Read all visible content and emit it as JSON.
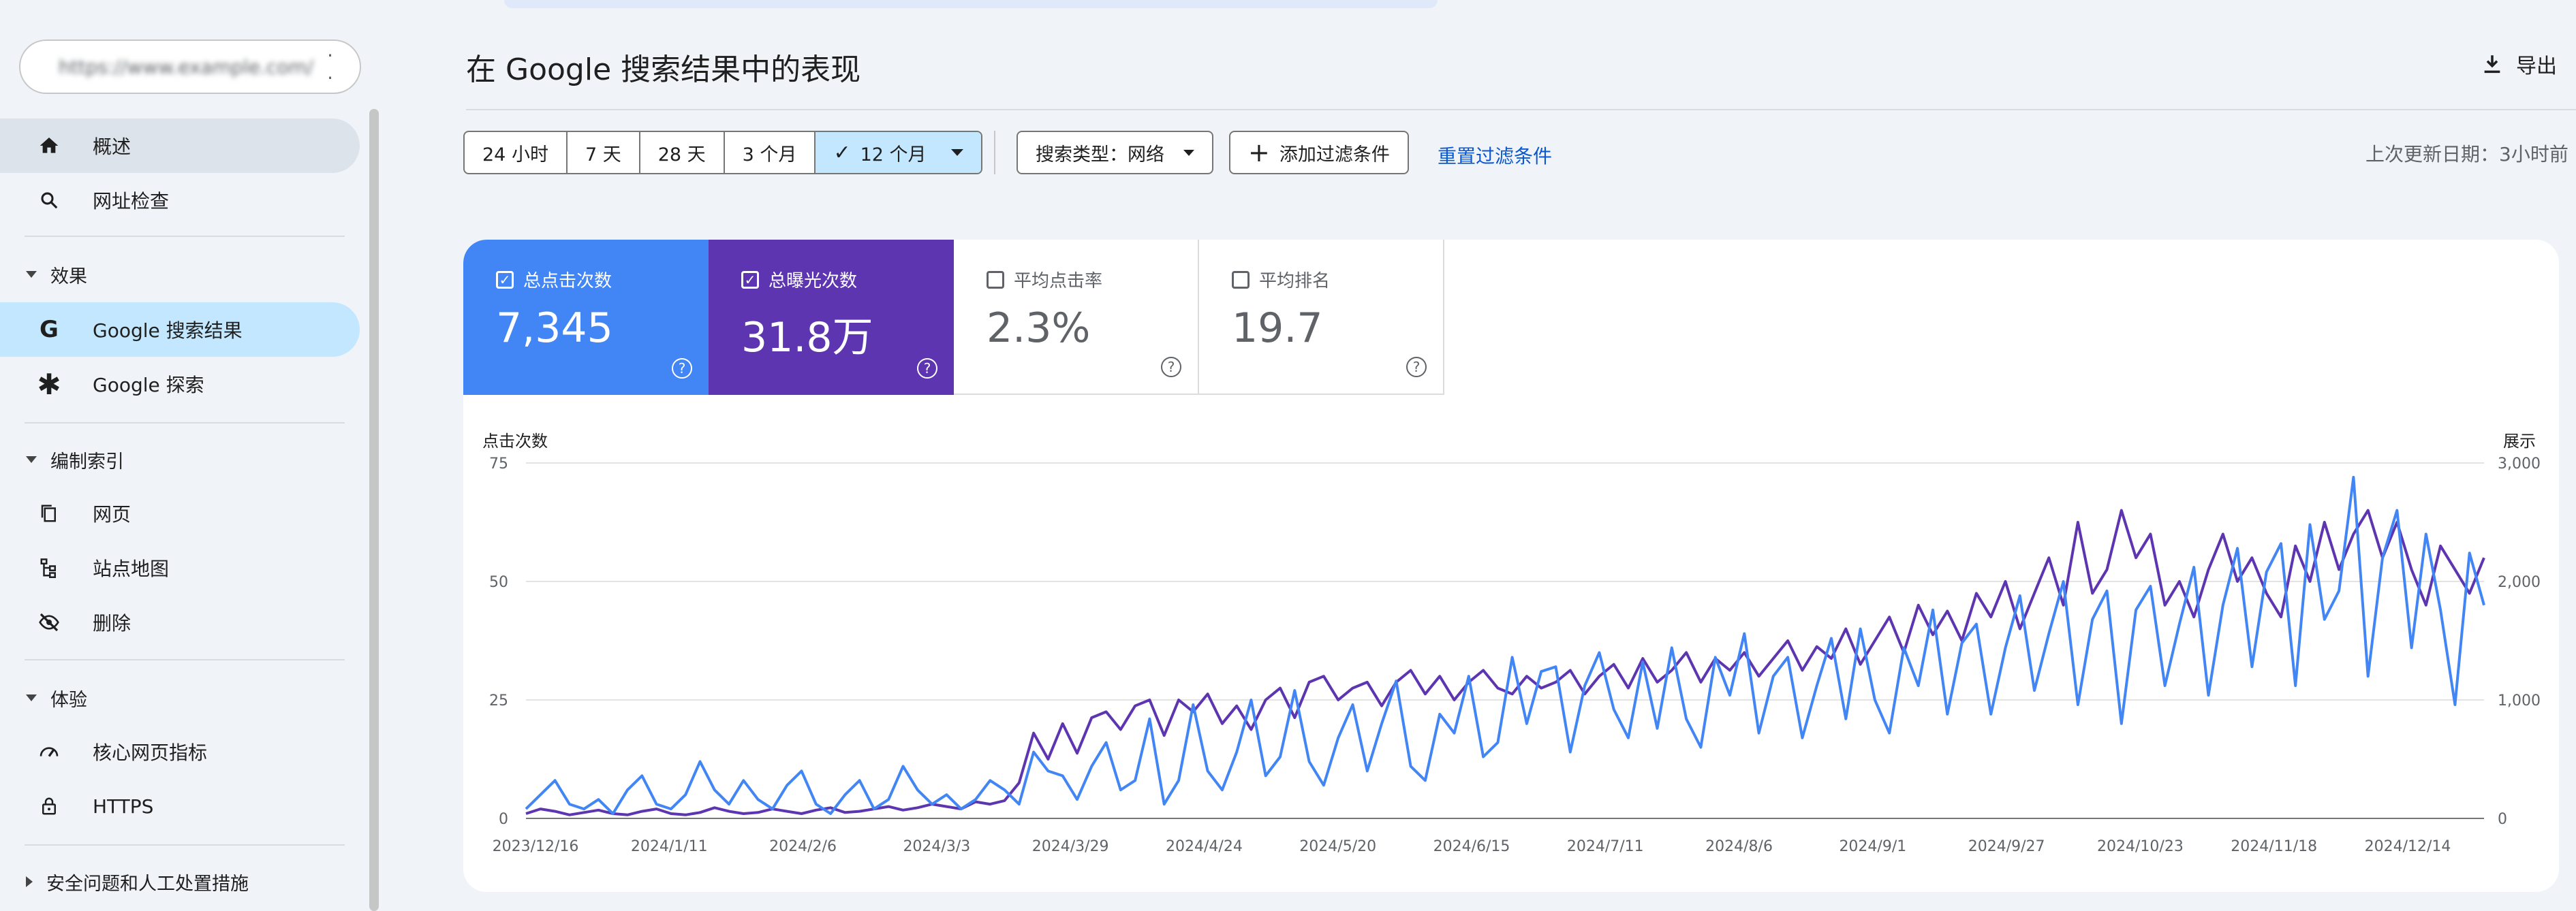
{
  "sidebar": {
    "property": {
      "name": "https://www.example.com/",
      "icon": "site-icon"
    },
    "items": [
      {
        "id": "overview",
        "label": "概述",
        "icon": "home-icon",
        "active": true
      },
      {
        "id": "url-inspect",
        "label": "网址检查",
        "icon": "search-icon"
      }
    ],
    "performance": {
      "label": "效果",
      "items": [
        {
          "id": "google-search",
          "label": "Google 搜索结果",
          "icon": "google-g-icon",
          "selected": true
        },
        {
          "id": "google-discover",
          "label": "Google 探索",
          "icon": "asterisk-icon"
        }
      ]
    },
    "indexing": {
      "label": "编制索引",
      "items": [
        {
          "id": "pages",
          "label": "网页",
          "icon": "pages-icon"
        },
        {
          "id": "sitemaps",
          "label": "站点地图",
          "icon": "sitemap-icon"
        },
        {
          "id": "removals",
          "label": "删除",
          "icon": "eye-off-icon"
        }
      ]
    },
    "experience": {
      "label": "体验",
      "items": [
        {
          "id": "cwv",
          "label": "核心网页指标",
          "icon": "gauge-icon"
        },
        {
          "id": "https",
          "label": "HTTPS",
          "icon": "lock-icon"
        }
      ]
    },
    "security": {
      "label": "安全问题和人工处置措施"
    }
  },
  "header": {
    "title": "在 Google 搜索结果中的表现",
    "export_label": "导出"
  },
  "filters": {
    "date_ranges": [
      "24 小时",
      "7 天",
      "28 天",
      "3 个月",
      "12 个月"
    ],
    "selected_range": "12 个月",
    "search_type": "搜索类型：网络",
    "add_filter": "添加过滤条件",
    "reset": "重置过滤条件",
    "last_updated": "上次更新日期：3小时前"
  },
  "metrics": {
    "clicks": {
      "label": "总点击次数",
      "value": "7,345",
      "checked": true,
      "color": "#4285f4"
    },
    "impressions": {
      "label": "总曝光次数",
      "value": "31.8万",
      "checked": true,
      "color": "#5e35b1"
    },
    "ctr": {
      "label": "平均点击率",
      "value": "2.3%",
      "checked": false
    },
    "position": {
      "label": "平均排名",
      "value": "19.7",
      "checked": false
    }
  },
  "chart_data": {
    "type": "line",
    "ylabel_left": "点击次数",
    "ylabel_right": "展示",
    "left_axis": {
      "range": [
        0,
        75
      ],
      "ticks": [
        0,
        25,
        50,
        75
      ]
    },
    "right_axis": {
      "range": [
        0,
        3000
      ],
      "ticks": [
        "0",
        "1,000",
        "2,000",
        "3,000"
      ]
    },
    "x_ticks": [
      "2023/12/16",
      "2024/1/11",
      "2024/2/6",
      "2024/3/3",
      "2024/3/29",
      "2024/4/24",
      "2024/5/20",
      "2024/6/15",
      "2024/7/11",
      "2024/8/6",
      "2024/9/1",
      "2024/9/27",
      "2024/10/23",
      "2024/11/18",
      "2024/12/14"
    ],
    "grid": true,
    "series": [
      {
        "name": "总点击次数",
        "axis": "left",
        "color": "#4285f4",
        "values": [
          2,
          5,
          8,
          3,
          2,
          4,
          1,
          6,
          9,
          3,
          2,
          5,
          12,
          6,
          3,
          8,
          4,
          2,
          7,
          10,
          3,
          1,
          5,
          8,
          2,
          4,
          11,
          6,
          3,
          5,
          2,
          4,
          8,
          6,
          3,
          14,
          10,
          9,
          4,
          11,
          16,
          6,
          8,
          21,
          3,
          8,
          24,
          10,
          6,
          14,
          25,
          9,
          13,
          27,
          12,
          7,
          17,
          24,
          10,
          20,
          29,
          11,
          8,
          22,
          18,
          30,
          13,
          16,
          34,
          20,
          31,
          32,
          14,
          28,
          35,
          23,
          17,
          33,
          19,
          36,
          21,
          15,
          34,
          26,
          39,
          18,
          30,
          34,
          17,
          28,
          38,
          21,
          40,
          25,
          18,
          36,
          28,
          44,
          22,
          37,
          41,
          22,
          36,
          47,
          27,
          39,
          50,
          24,
          42,
          48,
          20,
          44,
          49,
          28,
          41,
          53,
          26,
          45,
          57,
          32,
          52,
          58,
          28,
          62,
          42,
          48,
          72,
          30,
          55,
          65,
          36,
          60,
          44,
          24,
          56,
          45
        ]
      },
      {
        "name": "总曝光次数",
        "axis": "right",
        "color": "#5e35b1",
        "values": [
          40,
          80,
          60,
          30,
          50,
          70,
          40,
          30,
          60,
          80,
          40,
          30,
          50,
          90,
          60,
          40,
          50,
          80,
          60,
          40,
          70,
          90,
          50,
          60,
          80,
          100,
          70,
          90,
          120,
          100,
          80,
          140,
          120,
          150,
          300,
          720,
          500,
          800,
          550,
          850,
          900,
          750,
          950,
          1000,
          700,
          1000,
          900,
          1050,
          800,
          950,
          750,
          1000,
          1100,
          850,
          1150,
          1200,
          1000,
          1100,
          1150,
          950,
          1150,
          1250,
          1050,
          1200,
          1000,
          1150,
          1250,
          1100,
          1050,
          1200,
          1100,
          1150,
          1250,
          1050,
          1200,
          1300,
          1100,
          1350,
          1150,
          1250,
          1400,
          1150,
          1350,
          1250,
          1400,
          1200,
          1350,
          1500,
          1250,
          1450,
          1350,
          1600,
          1300,
          1500,
          1700,
          1400,
          1800,
          1550,
          1750,
          1500,
          1900,
          1700,
          2000,
          1600,
          1900,
          2200,
          1800,
          2500,
          1900,
          2100,
          2600,
          2200,
          2400,
          1800,
          2000,
          1700,
          2100,
          2400,
          2000,
          2200,
          1900,
          1700,
          2300,
          2000,
          2500,
          2100,
          2400,
          2600,
          2200,
          2500,
          2100,
          1800,
          2300,
          2100,
          1900,
          2200
        ]
      }
    ]
  }
}
